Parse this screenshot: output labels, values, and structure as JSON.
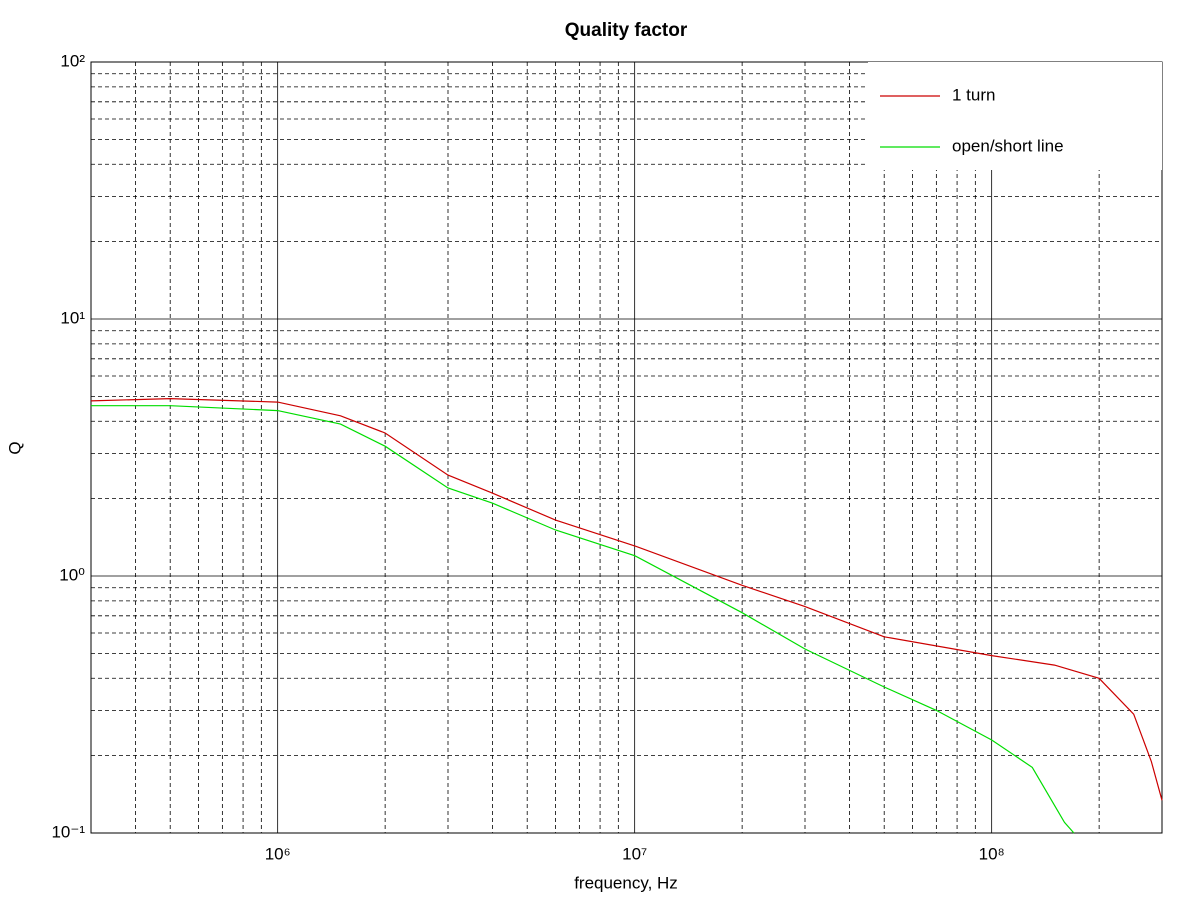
{
  "chart_data": {
    "type": "line",
    "title": "Quality factor",
    "x_label": "frequency, Hz",
    "y_label": "Q",
    "xscale": "log",
    "yscale": "log",
    "grid": true,
    "legend": "upper right",
    "xlim": [
      300000,
      300000000
    ],
    "ylim": [
      0.1,
      100
    ],
    "xticks": [
      {
        "value": 1000000,
        "label": "10⁶"
      },
      {
        "value": 10000000,
        "label": "10⁷"
      },
      {
        "value": 100000000,
        "label": "10⁸"
      }
    ],
    "yticks": [
      {
        "value": 0.1,
        "label": "10⁻¹"
      },
      {
        "value": 1,
        "label": "10⁰"
      },
      {
        "value": 10,
        "label": "10¹"
      },
      {
        "value": 100,
        "label": "10²"
      }
    ],
    "series": [
      {
        "name": "1 turn",
        "color": "#cc0000",
        "x": [
          300000,
          500000,
          1000000,
          1500000,
          2000000,
          3000000,
          4000000,
          6000000,
          10000000,
          20000000,
          30000000,
          50000000,
          100000000,
          150000000,
          200000000,
          250000000,
          280000000,
          300000000
        ],
        "values": [
          4.8,
          4.9,
          4.75,
          4.2,
          3.6,
          2.47,
          2.1,
          1.65,
          1.31,
          0.92,
          0.76,
          0.58,
          0.49,
          0.45,
          0.4,
          0.29,
          0.19,
          0.134
        ]
      },
      {
        "name": "open/short line",
        "color": "#00dd00",
        "x": [
          300000,
          500000,
          1000000,
          1500000,
          2000000,
          3000000,
          4000000,
          6000000,
          10000000,
          20000000,
          30000000,
          50000000,
          70000000,
          100000000,
          130000000,
          160000000,
          170000000
        ],
        "values": [
          4.6,
          4.6,
          4.4,
          3.9,
          3.2,
          2.2,
          1.92,
          1.51,
          1.2,
          0.72,
          0.52,
          0.37,
          0.3,
          0.23,
          0.18,
          0.11,
          0.1
        ]
      }
    ]
  }
}
